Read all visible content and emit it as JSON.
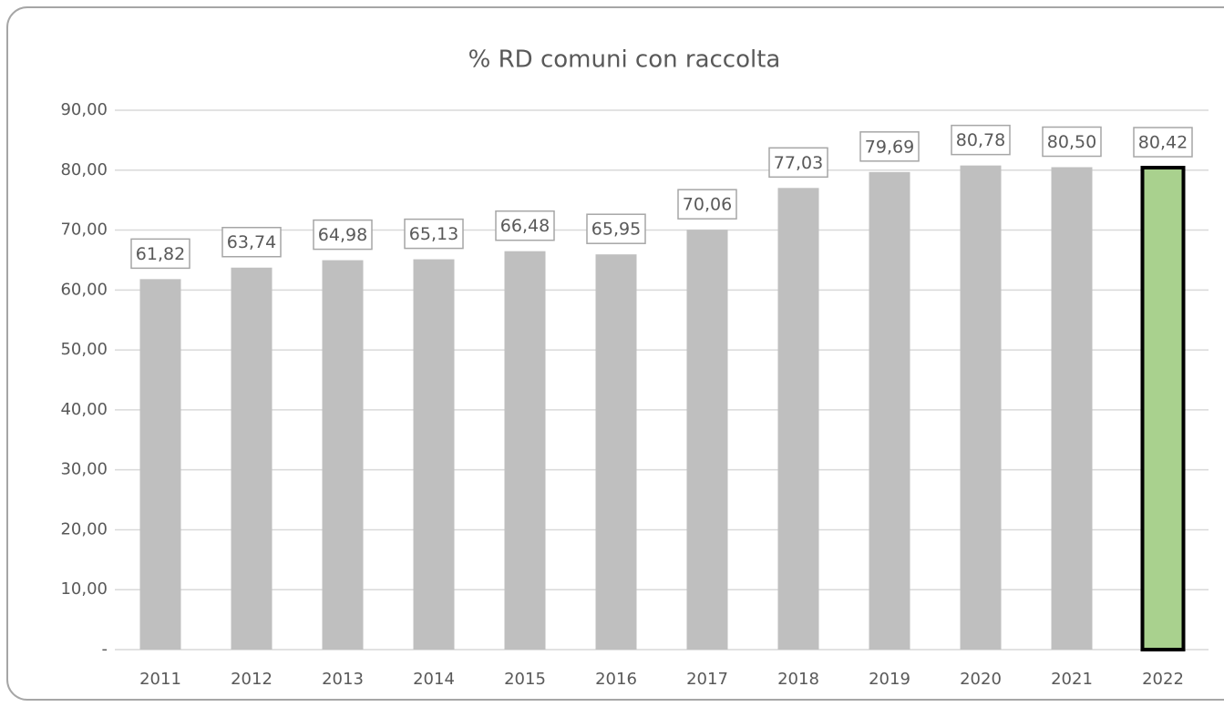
{
  "chart_data": {
    "type": "bar",
    "title": "% RD comuni con raccolta",
    "categories": [
      "2011",
      "2012",
      "2013",
      "2014",
      "2015",
      "2016",
      "2017",
      "2018",
      "2019",
      "2020",
      "2021",
      "2022"
    ],
    "values": [
      61.82,
      63.74,
      64.98,
      65.13,
      66.48,
      65.95,
      70.06,
      77.03,
      79.69,
      80.78,
      80.5,
      80.42
    ],
    "value_labels": [
      "61,82",
      "63,74",
      "64,98",
      "65,13",
      "66,48",
      "65,95",
      "70,06",
      "77,03",
      "79,69",
      "80,78",
      "80,50",
      "80,42"
    ],
    "colors": [
      "#bfbfbf",
      "#bfbfbf",
      "#bfbfbf",
      "#bfbfbf",
      "#bfbfbf",
      "#bfbfbf",
      "#bfbfbf",
      "#bfbfbf",
      "#bfbfbf",
      "#bfbfbf",
      "#bfbfbf",
      "#a9d18e"
    ],
    "edgecolors": [
      null,
      null,
      null,
      null,
      null,
      null,
      null,
      null,
      null,
      null,
      null,
      "#000000"
    ],
    "ylim": [
      0,
      90
    ],
    "yticks": [
      {
        "value": 0,
        "label": "-"
      },
      {
        "value": 10,
        "label": "10,00"
      },
      {
        "value": 20,
        "label": "20,00"
      },
      {
        "value": 30,
        "label": "30,00"
      },
      {
        "value": 40,
        "label": "40,00"
      },
      {
        "value": 50,
        "label": "50,00"
      },
      {
        "value": 60,
        "label": "60,00"
      },
      {
        "value": 70,
        "label": "70,00"
      },
      {
        "value": 80,
        "label": "80,00"
      },
      {
        "value": 90,
        "label": "90,00"
      }
    ],
    "grid": true
  }
}
